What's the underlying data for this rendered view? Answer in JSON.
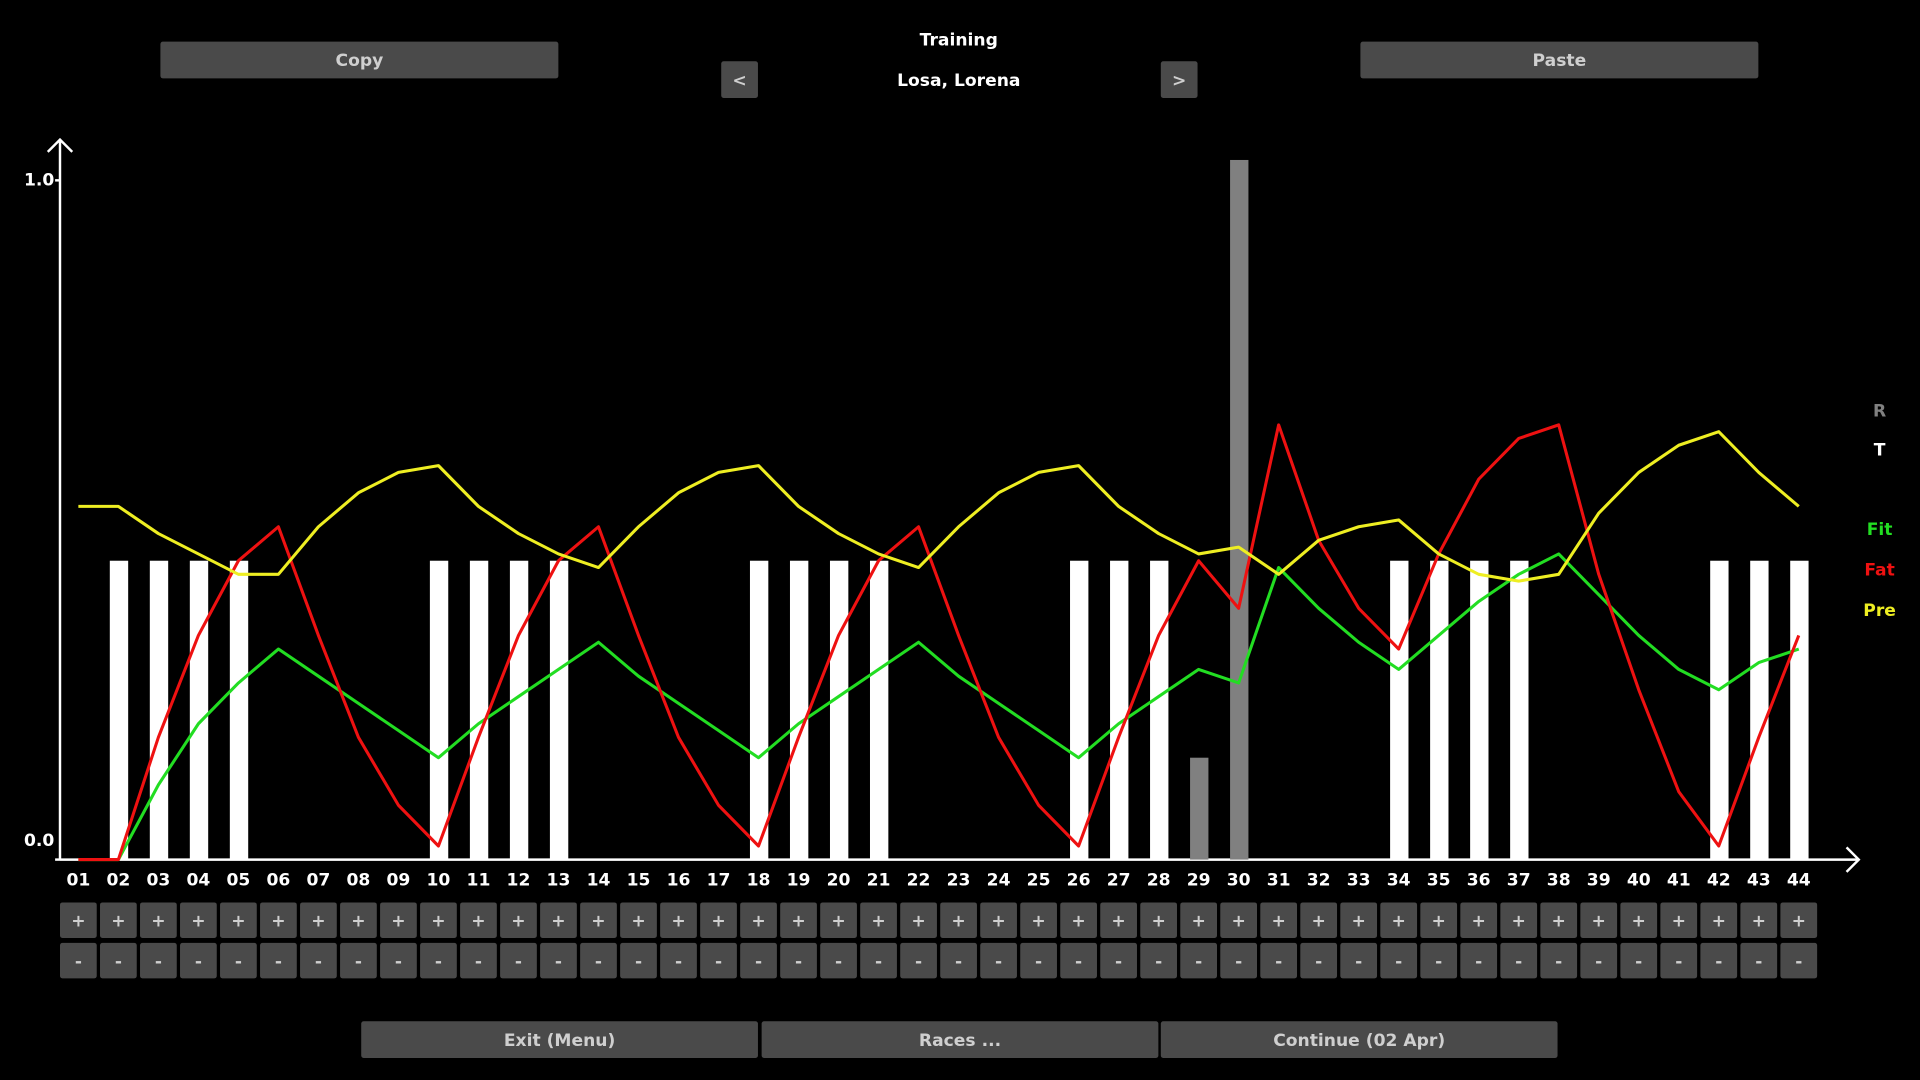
{
  "header": {
    "title": "Training",
    "athlete": "Losa, Lorena",
    "prev": "<",
    "next": ">"
  },
  "buttons": {
    "copy": "Copy",
    "paste": "Paste",
    "exit": "Exit (Menu)",
    "races": "Races ...",
    "continue": "Continue (02 Apr)"
  },
  "week_buttons": {
    "plus": "+",
    "minus": "-"
  },
  "chart_data": {
    "type": "bar",
    "categories": [
      "01",
      "02",
      "03",
      "04",
      "05",
      "06",
      "07",
      "08",
      "09",
      "10",
      "11",
      "12",
      "13",
      "14",
      "15",
      "16",
      "17",
      "18",
      "19",
      "20",
      "21",
      "22",
      "23",
      "24",
      "25",
      "26",
      "27",
      "28",
      "29",
      "30",
      "31",
      "32",
      "33",
      "34",
      "35",
      "36",
      "37",
      "38",
      "39",
      "40",
      "41",
      "42",
      "43",
      "44"
    ],
    "ylim": [
      0,
      1.06
    ],
    "yticks": [
      {
        "value": 0,
        "label": "0.0"
      },
      {
        "value": 1,
        "label": "1.0"
      }
    ],
    "series": [
      {
        "name": "R",
        "type": "bar",
        "color": "#808080",
        "values": [
          null,
          null,
          null,
          null,
          null,
          null,
          null,
          null,
          null,
          null,
          null,
          null,
          null,
          null,
          null,
          null,
          null,
          null,
          null,
          null,
          null,
          null,
          null,
          null,
          null,
          null,
          null,
          null,
          0.15,
          1.03,
          null,
          null,
          null,
          null,
          null,
          null,
          null,
          null,
          null,
          null,
          null,
          null,
          null,
          null
        ]
      },
      {
        "name": "T",
        "type": "bar",
        "color": "#ffffff",
        "values": [
          null,
          0.44,
          0.44,
          0.44,
          0.44,
          null,
          null,
          null,
          null,
          0.44,
          0.44,
          0.44,
          0.44,
          null,
          null,
          null,
          null,
          0.44,
          0.44,
          0.44,
          0.44,
          null,
          null,
          null,
          null,
          0.44,
          0.44,
          0.44,
          null,
          null,
          null,
          null,
          null,
          0.44,
          0.44,
          0.44,
          0.44,
          null,
          null,
          null,
          null,
          0.44,
          0.44,
          0.44
        ]
      },
      {
        "name": "Fit",
        "type": "line",
        "color": "#22dd22",
        "values": [
          0,
          0,
          0.11,
          0.2,
          0.26,
          0.31,
          0.27,
          0.23,
          0.19,
          0.15,
          0.2,
          0.24,
          0.28,
          0.32,
          0.27,
          0.23,
          0.19,
          0.15,
          0.2,
          0.24,
          0.28,
          0.32,
          0.27,
          0.23,
          0.19,
          0.15,
          0.2,
          0.24,
          0.28,
          0.26,
          0.43,
          0.37,
          0.32,
          0.28,
          0.33,
          0.38,
          0.42,
          0.45,
          0.39,
          0.33,
          0.28,
          0.25,
          0.29,
          0.31
        ]
      },
      {
        "name": "Fat",
        "type": "line",
        "color": "#ee1111",
        "values": [
          0,
          0,
          0.18,
          0.33,
          0.44,
          0.49,
          0.33,
          0.18,
          0.08,
          0.02,
          0.18,
          0.33,
          0.44,
          0.49,
          0.33,
          0.18,
          0.08,
          0.02,
          0.18,
          0.33,
          0.44,
          0.49,
          0.33,
          0.18,
          0.08,
          0.02,
          0.18,
          0.33,
          0.44,
          0.37,
          0.64,
          0.47,
          0.37,
          0.31,
          0.45,
          0.56,
          0.62,
          0.64,
          0.42,
          0.25,
          0.1,
          0.02,
          0.18,
          0.33
        ]
      },
      {
        "name": "Pre",
        "type": "line",
        "color": "#eeee22",
        "values": [
          0.52,
          0.52,
          0.48,
          0.45,
          0.42,
          0.42,
          0.49,
          0.54,
          0.57,
          0.58,
          0.52,
          0.48,
          0.45,
          0.43,
          0.49,
          0.54,
          0.57,
          0.58,
          0.52,
          0.48,
          0.45,
          0.43,
          0.49,
          0.54,
          0.57,
          0.58,
          0.52,
          0.48,
          0.45,
          0.46,
          0.42,
          0.47,
          0.49,
          0.5,
          0.45,
          0.42,
          0.41,
          0.42,
          0.51,
          0.57,
          0.61,
          0.63,
          0.57,
          0.52
        ]
      }
    ]
  }
}
